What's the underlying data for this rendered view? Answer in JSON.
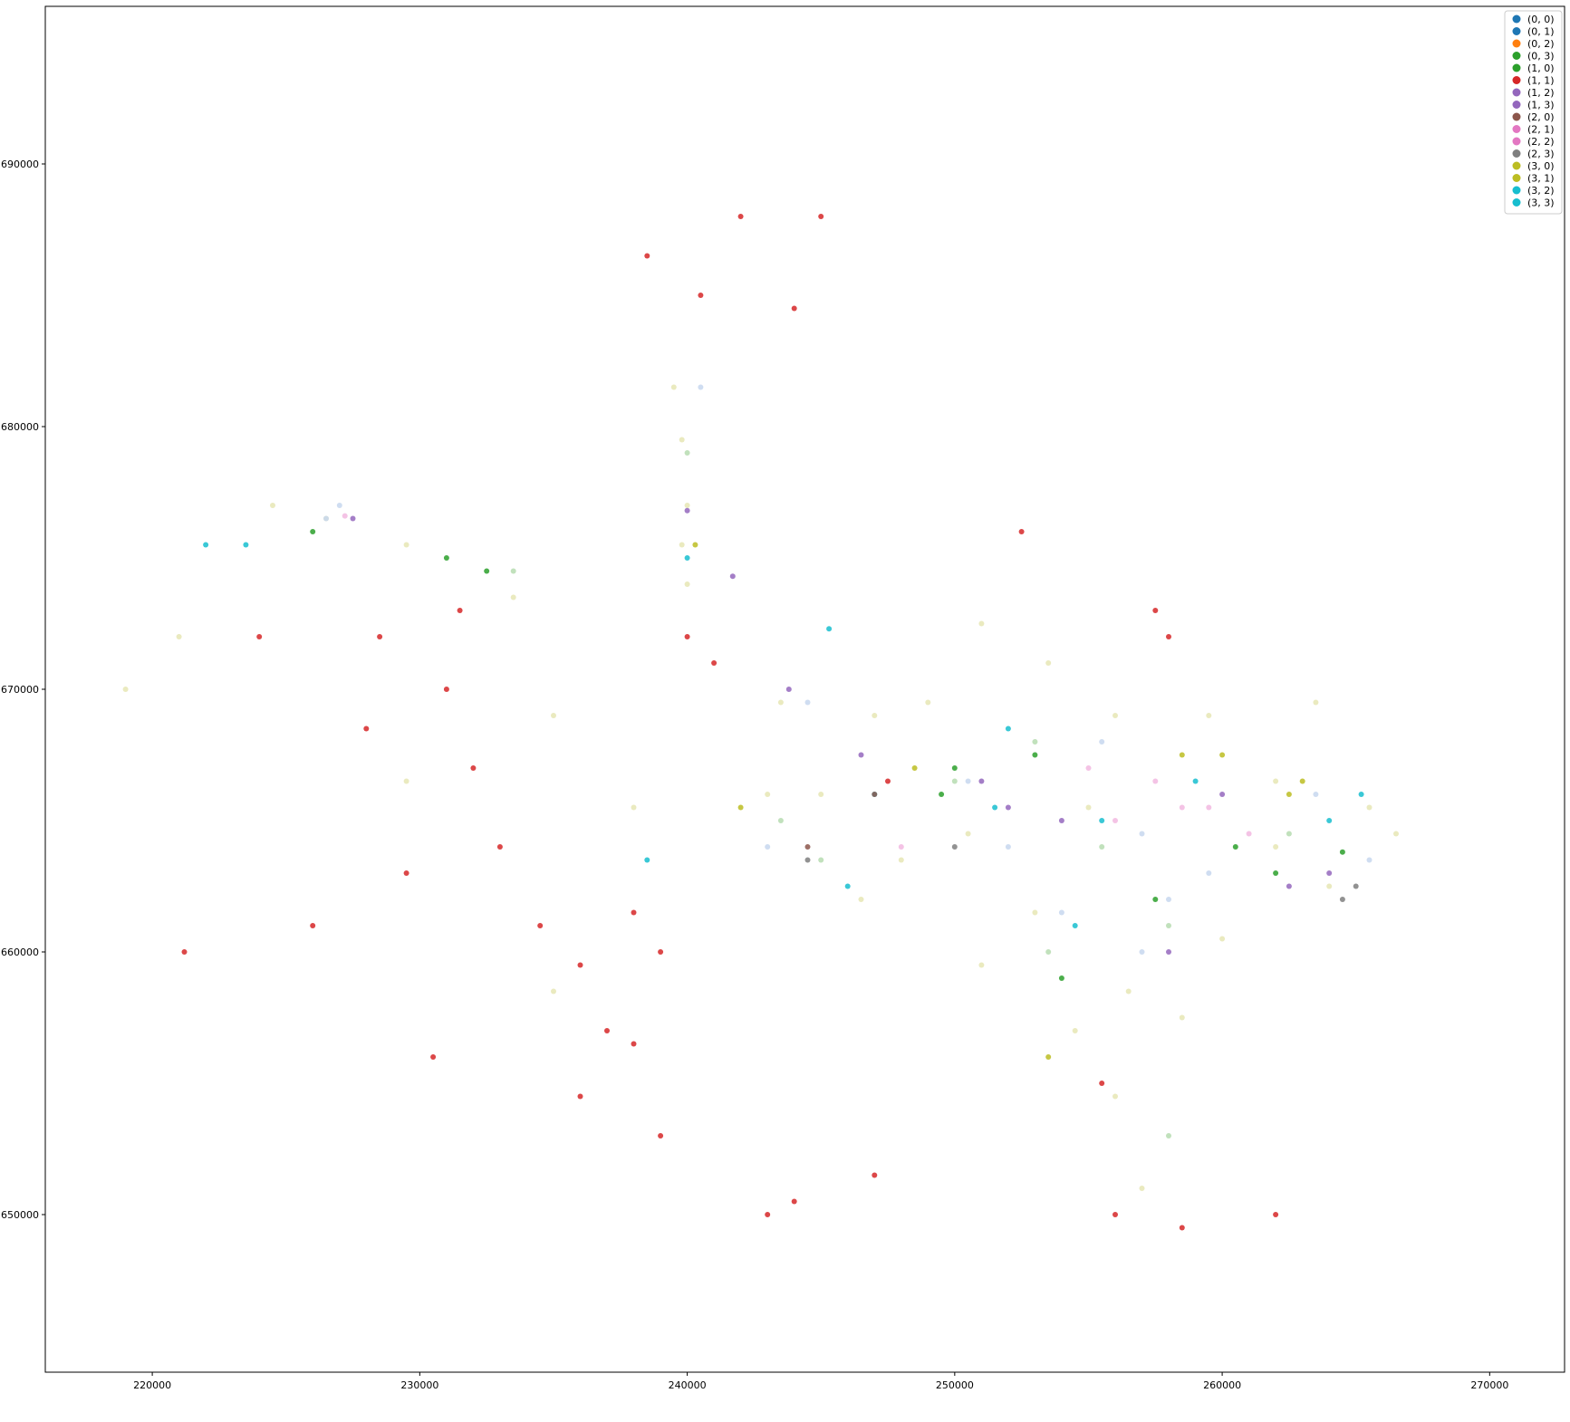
{
  "chart_data": {
    "type": "scatter",
    "title": "",
    "xlabel": "",
    "ylabel": "",
    "xlim": [
      216000,
      272800
    ],
    "ylim": [
      644000,
      696000
    ],
    "grid": false,
    "legend_position": "top-right",
    "x_ticks": [
      {
        "value": 220000,
        "label": "220000"
      },
      {
        "value": 230000,
        "label": "230000"
      },
      {
        "value": 240000,
        "label": "240000"
      },
      {
        "value": 250000,
        "label": "250000"
      },
      {
        "value": 260000,
        "label": "260000"
      },
      {
        "value": 270000,
        "label": "270000"
      }
    ],
    "y_ticks": [
      {
        "value": 650000,
        "label": "650000"
      },
      {
        "value": 660000,
        "label": "660000"
      },
      {
        "value": 670000,
        "label": "670000"
      },
      {
        "value": 680000,
        "label": "680000"
      },
      {
        "value": 690000,
        "label": "690000"
      }
    ],
    "legend": [
      {
        "label": "(0, 0)",
        "color": "#1f77b4"
      },
      {
        "label": "(0, 1)",
        "color": "#1f77b4"
      },
      {
        "label": "(0, 2)",
        "color": "#ff7f0e"
      },
      {
        "label": "(0, 3)",
        "color": "#2ca02c"
      },
      {
        "label": "(1, 0)",
        "color": "#2ca02c"
      },
      {
        "label": "(1, 1)",
        "color": "#d62728"
      },
      {
        "label": "(1, 2)",
        "color": "#9467bd"
      },
      {
        "label": "(1, 3)",
        "color": "#9467bd"
      },
      {
        "label": "(2, 0)",
        "color": "#8c564b"
      },
      {
        "label": "(2, 1)",
        "color": "#e377c2"
      },
      {
        "label": "(2, 2)",
        "color": "#e377c2"
      },
      {
        "label": "(2, 3)",
        "color": "#7f7f7f"
      },
      {
        "label": "(3, 0)",
        "color": "#bcbd22"
      },
      {
        "label": "(3, 1)",
        "color": "#bcbd22"
      },
      {
        "label": "(3, 2)",
        "color": "#17becf"
      },
      {
        "label": "(3, 3)",
        "color": "#17becf"
      }
    ],
    "series": [
      {
        "label": "(3, 1)",
        "color": "#e6e6b4",
        "points": [
          [
            224500,
            677000
          ],
          [
            226500,
            676500
          ],
          [
            229500,
            675500
          ],
          [
            233500,
            673500
          ],
          [
            239500,
            681500
          ],
          [
            239800,
            679500
          ],
          [
            240000,
            677000
          ],
          [
            239800,
            675500
          ],
          [
            240000,
            674000
          ],
          [
            251000,
            672500
          ],
          [
            249000,
            669500
          ],
          [
            253500,
            671000
          ],
          [
            256000,
            669000
          ],
          [
            259500,
            669000
          ],
          [
            263500,
            669500
          ],
          [
            262000,
            666500
          ],
          [
            265500,
            665500
          ],
          [
            266500,
            664500
          ],
          [
            255000,
            665500
          ],
          [
            250500,
            664500
          ],
          [
            248000,
            663500
          ],
          [
            246500,
            662000
          ],
          [
            253000,
            661500
          ],
          [
            251000,
            659500
          ],
          [
            254500,
            657000
          ],
          [
            256500,
            658500
          ],
          [
            260000,
            660500
          ],
          [
            258500,
            657500
          ],
          [
            256000,
            654500
          ],
          [
            262000,
            664000
          ],
          [
            264000,
            662500
          ],
          [
            243000,
            666000
          ],
          [
            245000,
            666000
          ],
          [
            243500,
            669500
          ],
          [
            247000,
            669000
          ],
          [
            235000,
            669000
          ],
          [
            238000,
            665500
          ],
          [
            229500,
            666500
          ],
          [
            219000,
            670000
          ],
          [
            221000,
            672000
          ],
          [
            235000,
            658500
          ],
          [
            257000,
            651000
          ]
        ]
      },
      {
        "label": "(0, 1)",
        "color": "#c7d7ee",
        "points": [
          [
            227000,
            677000
          ],
          [
            226500,
            676500
          ],
          [
            240500,
            681500
          ],
          [
            252000,
            664000
          ],
          [
            254000,
            661500
          ],
          [
            257000,
            664500
          ],
          [
            258000,
            662000
          ],
          [
            259500,
            663000
          ],
          [
            263500,
            666000
          ],
          [
            265500,
            663500
          ],
          [
            257000,
            660000
          ],
          [
            244500,
            669500
          ],
          [
            250500,
            666500
          ],
          [
            243000,
            664000
          ],
          [
            255500,
            668000
          ]
        ]
      },
      {
        "label": "(1, 0)",
        "color": "#b6dcb0",
        "points": [
          [
            233500,
            674500
          ],
          [
            253000,
            668000
          ],
          [
            250000,
            666500
          ],
          [
            255500,
            664000
          ],
          [
            258000,
            661000
          ],
          [
            262500,
            664500
          ],
          [
            253500,
            660000
          ],
          [
            245000,
            663500
          ],
          [
            240000,
            679000
          ],
          [
            243500,
            665000
          ],
          [
            258000,
            653000
          ]
        ]
      },
      {
        "label": "(2, 2)",
        "color": "#f2b8e0",
        "points": [
          [
            227200,
            676600
          ],
          [
            258500,
            665500
          ],
          [
            257500,
            666500
          ],
          [
            259500,
            665500
          ],
          [
            261000,
            664500
          ],
          [
            256000,
            665000
          ],
          [
            248000,
            664000
          ],
          [
            255000,
            667000
          ]
        ]
      },
      {
        "label": "(1, 2)",
        "color": "#9467bd",
        "points": [
          [
            227500,
            676500
          ],
          [
            243800,
            670000
          ],
          [
            246500,
            667500
          ],
          [
            251000,
            666500
          ],
          [
            252000,
            665500
          ],
          [
            254000,
            665000
          ],
          [
            260000,
            666000
          ],
          [
            262500,
            662500
          ],
          [
            264000,
            663000
          ],
          [
            241700,
            674300
          ],
          [
            240000,
            676800
          ],
          [
            258000,
            660000
          ]
        ]
      },
      {
        "label": "(3, 2)",
        "color": "#17becf",
        "points": [
          [
            222000,
            675500
          ],
          [
            223500,
            675500
          ],
          [
            245300,
            672300
          ],
          [
            251500,
            665500
          ],
          [
            255500,
            665000
          ],
          [
            259000,
            666500
          ],
          [
            264000,
            665000
          ],
          [
            265200,
            666000
          ],
          [
            252000,
            668500
          ],
          [
            247000,
            666000
          ],
          [
            240000,
            675000
          ],
          [
            238500,
            663500
          ],
          [
            246000,
            662500
          ],
          [
            254500,
            661000
          ]
        ]
      },
      {
        "label": "(1, 3)",
        "color": "#2ca02c",
        "points": [
          [
            226000,
            676000
          ],
          [
            231000,
            675000
          ],
          [
            232500,
            674500
          ],
          [
            250000,
            667000
          ],
          [
            249500,
            666000
          ],
          [
            257500,
            662000
          ],
          [
            260500,
            664000
          ],
          [
            253000,
            667500
          ],
          [
            262000,
            663000
          ],
          [
            254000,
            659000
          ],
          [
            264500,
            663800
          ]
        ]
      },
      {
        "label": "(3, 0)",
        "color": "#bcbd22",
        "points": [
          [
            242000,
            665500
          ],
          [
            248500,
            667000
          ],
          [
            258500,
            667500
          ],
          [
            260000,
            667500
          ],
          [
            262500,
            666000
          ],
          [
            240300,
            675500
          ],
          [
            263000,
            666500
          ],
          [
            253500,
            656000
          ]
        ]
      },
      {
        "label": "(2, 3)",
        "color": "#7f7f7f",
        "points": [
          [
            264500,
            662000
          ],
          [
            265000,
            662500
          ],
          [
            244500,
            663500
          ],
          [
            250000,
            664000
          ]
        ]
      },
      {
        "label": "(1, 1)",
        "color": "#d62728",
        "points": [
          [
            221200,
            660000
          ],
          [
            224000,
            672000
          ],
          [
            228000,
            668500
          ],
          [
            231000,
            670000
          ],
          [
            232000,
            667000
          ],
          [
            233000,
            664000
          ],
          [
            234500,
            661000
          ],
          [
            236000,
            659500
          ],
          [
            237000,
            657000
          ],
          [
            236000,
            654500
          ],
          [
            238000,
            661500
          ],
          [
            239000,
            660000
          ],
          [
            238000,
            656500
          ],
          [
            240000,
            672000
          ],
          [
            241000,
            671000
          ],
          [
            240500,
            685000
          ],
          [
            244000,
            684500
          ],
          [
            238500,
            686500
          ],
          [
            242000,
            688000
          ],
          [
            245000,
            688000
          ],
          [
            230500,
            656000
          ],
          [
            229500,
            663000
          ],
          [
            226000,
            661000
          ],
          [
            244000,
            650500
          ],
          [
            247000,
            651500
          ],
          [
            256000,
            650000
          ],
          [
            258000,
            672000
          ],
          [
            257500,
            673000
          ],
          [
            252500,
            676000
          ],
          [
            255500,
            655000
          ],
          [
            258500,
            649500
          ],
          [
            262000,
            650000
          ],
          [
            247500,
            666500
          ],
          [
            231500,
            673000
          ],
          [
            228500,
            672000
          ],
          [
            239000,
            653000
          ],
          [
            243000,
            650000
          ]
        ]
      },
      {
        "label": "(2, 0)",
        "color": "#8c564b",
        "points": [
          [
            247000,
            666000
          ],
          [
            244500,
            664000
          ]
        ]
      }
    ]
  }
}
